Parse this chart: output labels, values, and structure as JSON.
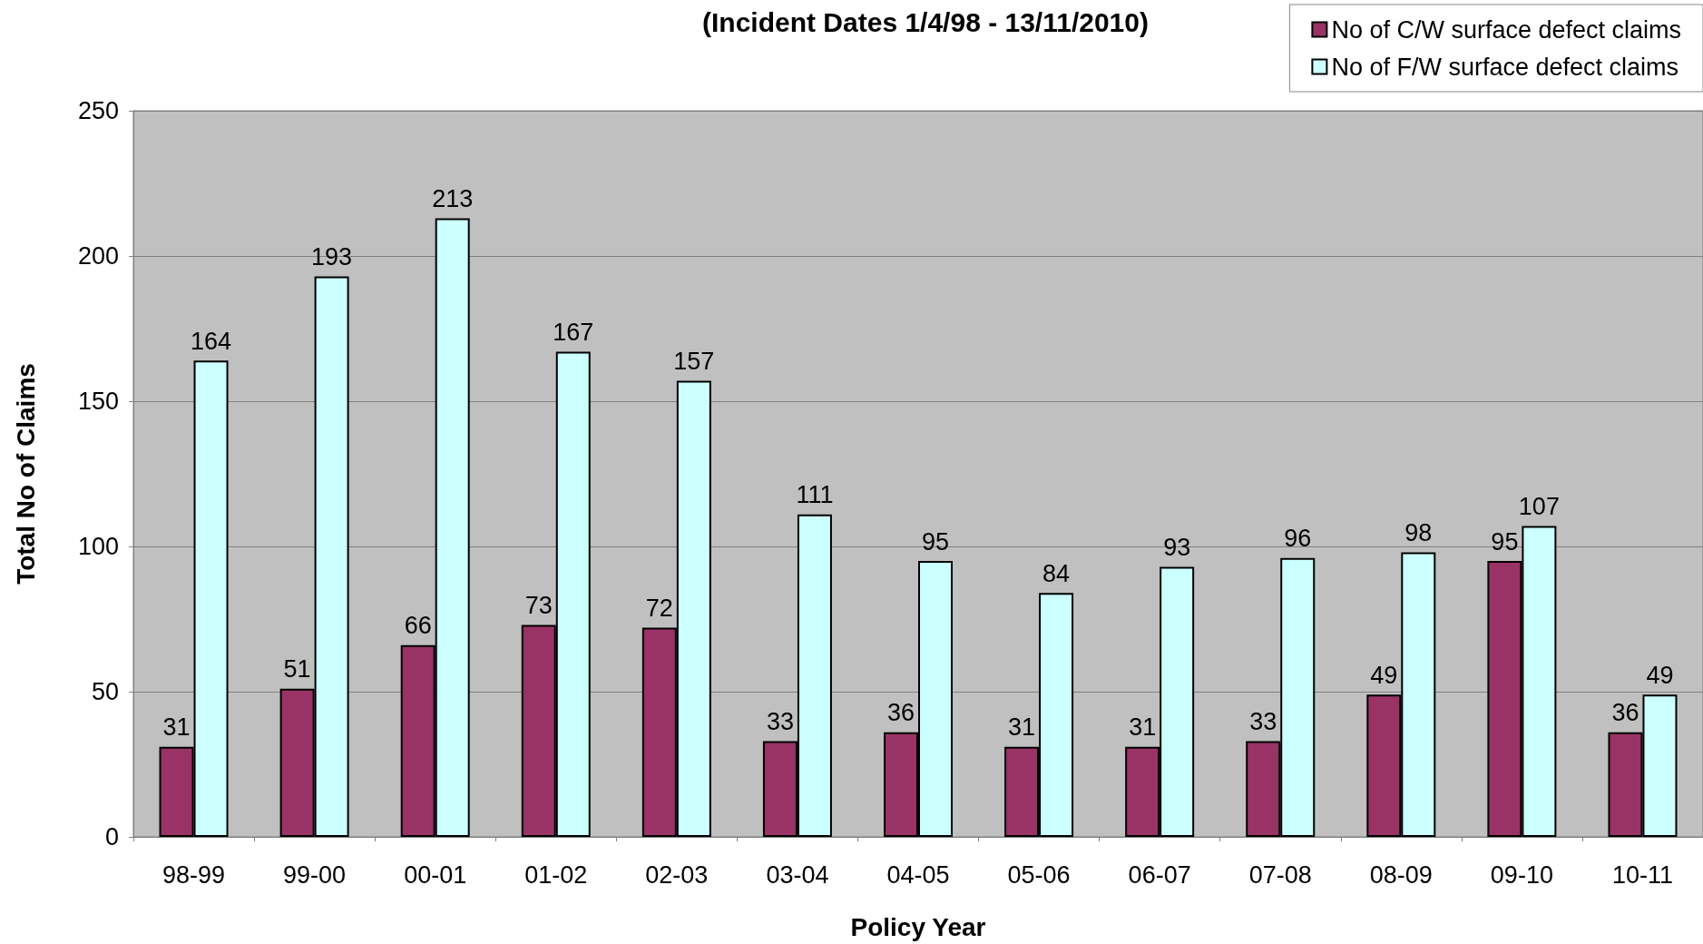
{
  "chart_data": {
    "type": "bar",
    "title": "(Incident Dates 1/4/98 - 13/11/2010)",
    "xlabel": "Policy Year",
    "ylabel": "Total No of Claims",
    "categories": [
      "98-99",
      "99-00",
      "00-01",
      "01-02",
      "02-03",
      "03-04",
      "04-05",
      "05-06",
      "06-07",
      "07-08",
      "08-09",
      "09-10",
      "10-11"
    ],
    "series": [
      {
        "name": "No of C/W surface defect claims",
        "color": "#993366",
        "values": [
          31,
          51,
          66,
          73,
          72,
          33,
          36,
          31,
          31,
          33,
          49,
          95,
          36
        ]
      },
      {
        "name": "No of F/W surface defect claims",
        "color": "#ccffff",
        "values": [
          164,
          193,
          213,
          167,
          157,
          111,
          95,
          84,
          93,
          96,
          98,
          107,
          49
        ]
      }
    ],
    "ylim": [
      0,
      250
    ],
    "yticks": [
      0,
      50,
      100,
      150,
      200,
      250
    ],
    "grid": "y",
    "legend": "top right",
    "data_labels": true
  }
}
